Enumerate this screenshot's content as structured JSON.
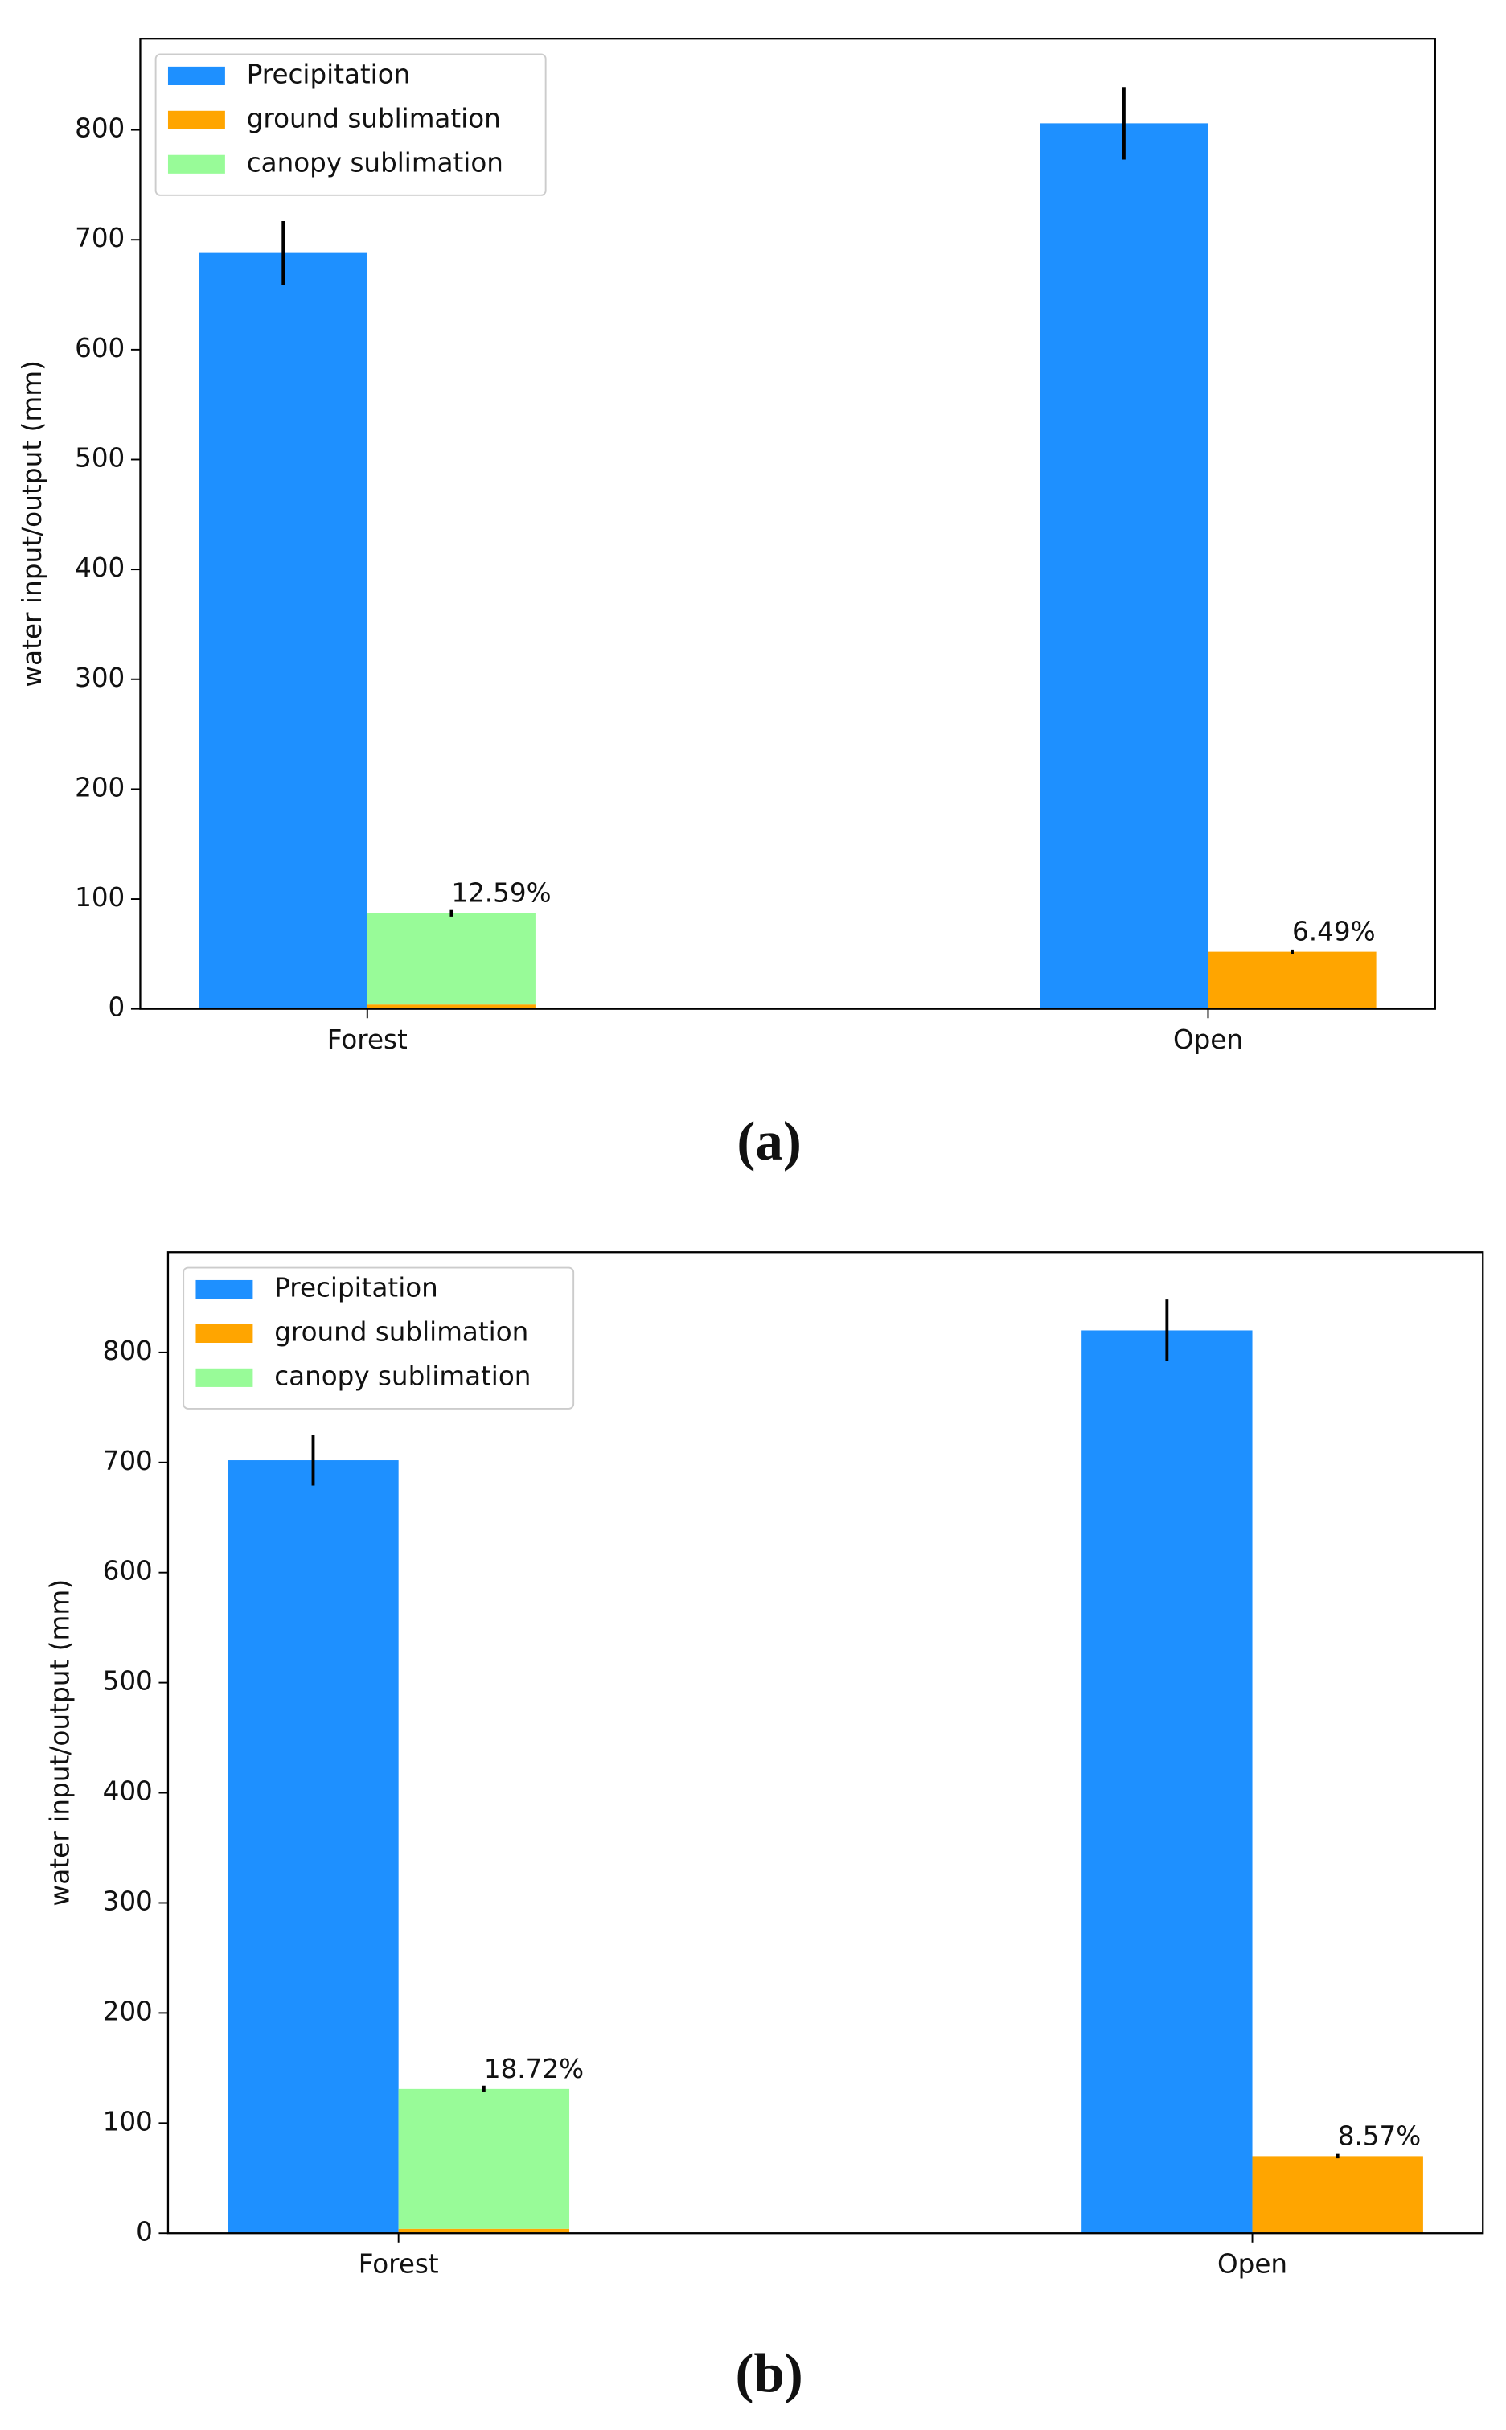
{
  "chart_data": [
    {
      "type": "bar",
      "caption": "(a)",
      "ylabel": "water input/output (mm)",
      "categories": [
        "Forest",
        "Open"
      ],
      "series": [
        {
          "name": "Precipitation",
          "color": "#1e90ff",
          "values": [
            688,
            806
          ],
          "errors": [
            29,
            33
          ]
        },
        {
          "name": "ground sublimation",
          "color": "#ffa500",
          "values": [
            4,
            52
          ],
          "errors": [
            null,
            2
          ]
        },
        {
          "name": "canopy sublimation",
          "color": "#98fb98",
          "values": [
            83,
            null
          ],
          "errors": [
            3,
            null
          ]
        }
      ],
      "annotations": [
        "12.59%",
        "6.49%"
      ],
      "ylim": [
        0,
        883
      ],
      "yticks": [
        0,
        100,
        200,
        300,
        400,
        500,
        600,
        700,
        800
      ],
      "legend": "upper left"
    },
    {
      "type": "bar",
      "caption": "(b)",
      "ylabel": "water input/output (mm)",
      "categories": [
        "Forest",
        "Open"
      ],
      "series": [
        {
          "name": "Precipitation",
          "color": "#1e90ff",
          "values": [
            702,
            820
          ],
          "errors": [
            23,
            28
          ]
        },
        {
          "name": "ground sublimation",
          "color": "#ffa500",
          "values": [
            4,
            70
          ],
          "errors": [
            null,
            2
          ]
        },
        {
          "name": "canopy sublimation",
          "color": "#98fb98",
          "values": [
            127,
            null
          ],
          "errors": [
            3,
            null
          ]
        }
      ],
      "annotations": [
        "18.72%",
        "8.57%"
      ],
      "ylim": [
        0,
        891
      ],
      "yticks": [
        0,
        100,
        200,
        300,
        400,
        500,
        600,
        700,
        800
      ],
      "legend": "upper left"
    }
  ]
}
